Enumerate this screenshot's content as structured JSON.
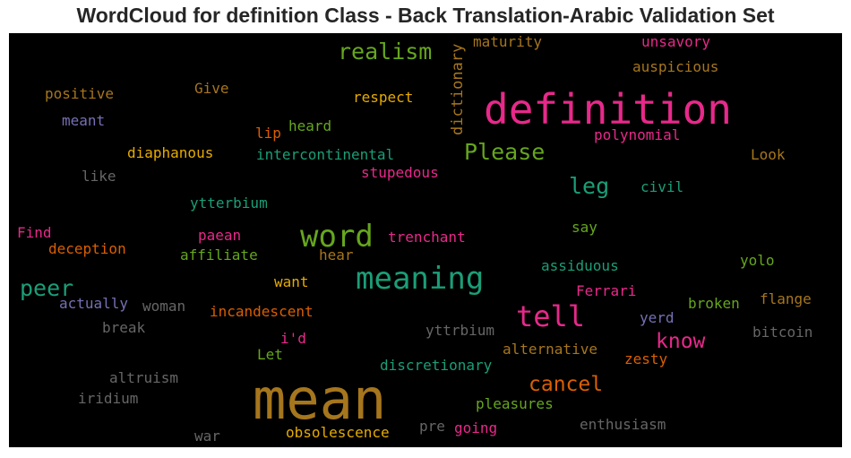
{
  "chart_data": {
    "type": "wordcloud",
    "title": "WordCloud for definition Class - Back Translation-Arabic Validation Set",
    "background": "#000000",
    "words": [
      {
        "text": "definition",
        "color": "#e7298a"
      },
      {
        "text": "mean",
        "color": "#a6761d"
      },
      {
        "text": "meaning",
        "color": "#1b9e77"
      },
      {
        "text": "word",
        "color": "#66a61e"
      },
      {
        "text": "tell",
        "color": "#e7298a"
      },
      {
        "text": "realism",
        "color": "#66a61e"
      },
      {
        "text": "Please",
        "color": "#66a61e"
      },
      {
        "text": "peer",
        "color": "#1b9e77"
      },
      {
        "text": "leg",
        "color": "#1b9e77"
      },
      {
        "text": "know",
        "color": "#e7298a"
      },
      {
        "text": "cancel",
        "color": "#d95f02"
      },
      {
        "text": "dictionary",
        "color": "#a6761d"
      },
      {
        "text": "maturity",
        "color": "#a6761d"
      },
      {
        "text": "unsavory",
        "color": "#e7298a"
      },
      {
        "text": "auspicious",
        "color": "#a6761d"
      },
      {
        "text": "positive",
        "color": "#a6761d"
      },
      {
        "text": "Give",
        "color": "#a6761d"
      },
      {
        "text": "respect",
        "color": "#e6ab02"
      },
      {
        "text": "meant",
        "color": "#7570b3"
      },
      {
        "text": "heard",
        "color": "#66a61e"
      },
      {
        "text": "lip",
        "color": "#d95f02"
      },
      {
        "text": "polynomial",
        "color": "#e7298a"
      },
      {
        "text": "diaphanous",
        "color": "#e6ab02"
      },
      {
        "text": "intercontinental",
        "color": "#1b9e77"
      },
      {
        "text": "Look",
        "color": "#a6761d"
      },
      {
        "text": "like",
        "color": "#666666"
      },
      {
        "text": "stupedous",
        "color": "#e7298a"
      },
      {
        "text": "civil",
        "color": "#1b9e77"
      },
      {
        "text": "ytterbium",
        "color": "#1b9e77"
      },
      {
        "text": "Find",
        "color": "#e7298a"
      },
      {
        "text": "paean",
        "color": "#e7298a"
      },
      {
        "text": "trenchant",
        "color": "#e7298a"
      },
      {
        "text": "say",
        "color": "#66a61e"
      },
      {
        "text": "deception",
        "color": "#d95f02"
      },
      {
        "text": "affiliate",
        "color": "#66a61e"
      },
      {
        "text": "hear",
        "color": "#a6761d"
      },
      {
        "text": "yolo",
        "color": "#66a61e"
      },
      {
        "text": "assiduous",
        "color": "#1b9e77"
      },
      {
        "text": "want",
        "color": "#e6ab02"
      },
      {
        "text": "Ferrari",
        "color": "#e7298a"
      },
      {
        "text": "flange",
        "color": "#a6761d"
      },
      {
        "text": "actually",
        "color": "#7570b3"
      },
      {
        "text": "woman",
        "color": "#666666"
      },
      {
        "text": "broken",
        "color": "#66a61e"
      },
      {
        "text": "incandescent",
        "color": "#d95f02"
      },
      {
        "text": "yerd",
        "color": "#7570b3"
      },
      {
        "text": "break",
        "color": "#666666"
      },
      {
        "text": "i'd",
        "color": "#e7298a"
      },
      {
        "text": "yttrbium",
        "color": "#666666"
      },
      {
        "text": "bitcoin",
        "color": "#666666"
      },
      {
        "text": "Let",
        "color": "#66a61e"
      },
      {
        "text": "alternative",
        "color": "#a6761d"
      },
      {
        "text": "zesty",
        "color": "#d95f02"
      },
      {
        "text": "altruism",
        "color": "#666666"
      },
      {
        "text": "discretionary",
        "color": "#1b9e77"
      },
      {
        "text": "iridium",
        "color": "#666666"
      },
      {
        "text": "pleasures",
        "color": "#66a61e"
      },
      {
        "text": "enthusiasm",
        "color": "#666666"
      },
      {
        "text": "pre",
        "color": "#666666"
      },
      {
        "text": "going",
        "color": "#e7298a"
      },
      {
        "text": "war",
        "color": "#666666"
      },
      {
        "text": "obsolescence",
        "color": "#e6ab02"
      }
    ]
  }
}
